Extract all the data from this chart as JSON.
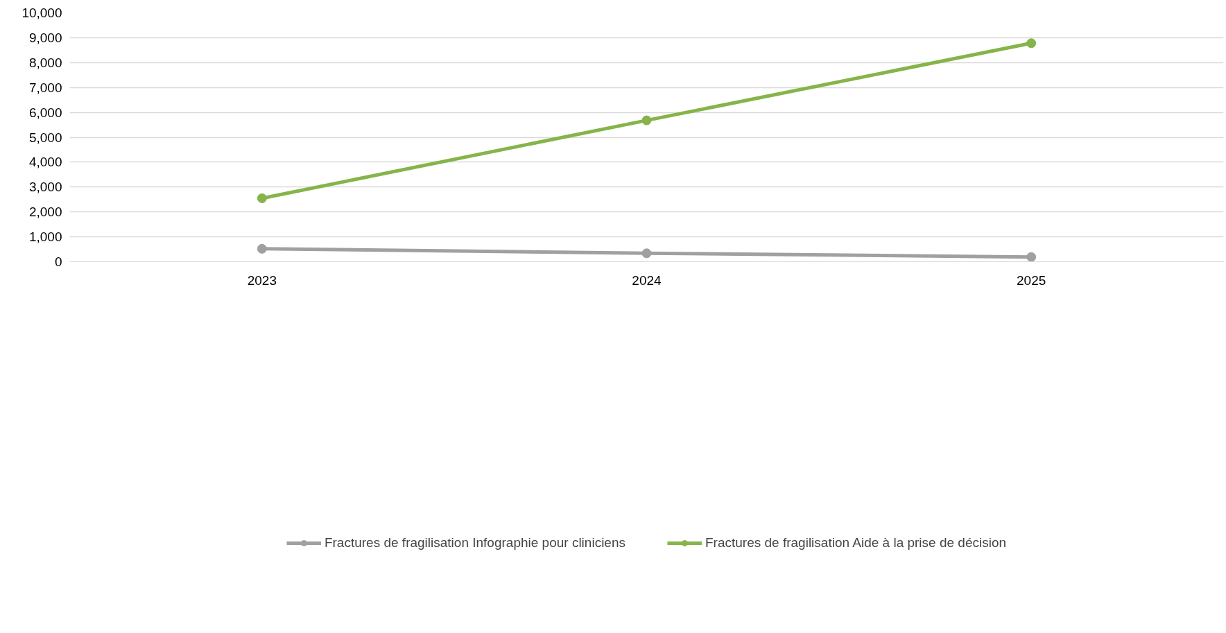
{
  "chart_data": {
    "type": "line",
    "categories": [
      "2023",
      "2024",
      "2025"
    ],
    "series": [
      {
        "name": "Fractures de fragilisation Infographie pour cliniciens",
        "color": "#a0a0a0",
        "values": [
          520,
          340,
          190
        ]
      },
      {
        "name": "Fractures de fragilisation Aide à la prise de décision",
        "color": "#86b44a",
        "values": [
          2550,
          5680,
          8780
        ]
      }
    ],
    "ylim": [
      0,
      10000
    ],
    "yticks": [
      {
        "value": 0,
        "label": "0"
      },
      {
        "value": 1000,
        "label": "1,000"
      },
      {
        "value": 2000,
        "label": "2,000"
      },
      {
        "value": 3000,
        "label": "3,000"
      },
      {
        "value": 4000,
        "label": "4,000"
      },
      {
        "value": 5000,
        "label": "5,000"
      },
      {
        "value": 6000,
        "label": "6,000"
      },
      {
        "value": 7000,
        "label": "7,000"
      },
      {
        "value": 8000,
        "label": "8,000"
      },
      {
        "value": 9000,
        "label": "9,000"
      },
      {
        "value": 10000,
        "label": "10,000"
      }
    ],
    "grid": "y",
    "legend": "bottom",
    "marker": "circle",
    "line_style": "solid"
  }
}
